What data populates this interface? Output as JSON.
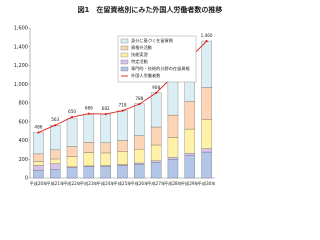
{
  "chart_data": {
    "type": "bar",
    "stacked": true,
    "title": "図1　在留資格別にみた外国人労働者数の推移",
    "categories": [
      "平成20年",
      "平成21年",
      "平成22年",
      "平成23年",
      "平成24年",
      "平成25年",
      "平成26年",
      "平成27年",
      "平成28年",
      "平成29年",
      "平成30年"
    ],
    "series": [
      {
        "name": "専門的・技術的分野の在留資格",
        "color": "#b4c6e7",
        "values": [
          84,
          93,
          111,
          121,
          124,
          133,
          147,
          168,
          201,
          238,
          277
        ]
      },
      {
        "name": "特定活動",
        "color": "#d9c3e9",
        "values": [
          50,
          60,
          8,
          8,
          9,
          10,
          13,
          15,
          19,
          26,
          36
        ]
      },
      {
        "name": "技能実習",
        "color": "#fff2a8",
        "values": [
          40,
          50,
          110,
          143,
          134,
          136,
          146,
          169,
          211,
          258,
          308
        ]
      },
      {
        "name": "資格外活動",
        "color": "#fbd5b5",
        "values": [
          83,
          97,
          108,
          110,
          108,
          122,
          146,
          192,
          240,
          297,
          344
        ]
      },
      {
        "name": "身分に基づく在留資格",
        "color": "#dbeef3",
        "values": [
          229,
          263,
          296,
          300,
          308,
          316,
          339,
          367,
          413,
          459,
          496
        ]
      }
    ],
    "line": {
      "name": "外国人労働者数",
      "color": "#e02020",
      "values": [
        486,
        563,
        650,
        686,
        682,
        718,
        788,
        908,
        1084,
        1279,
        1460
      ],
      "value_labels": [
        "486",
        "563",
        "650",
        "686",
        "682",
        "718",
        "788",
        "908",
        "1,084",
        "1,279",
        "1,460"
      ]
    },
    "ylim": [
      0,
      1600
    ],
    "yticks": [
      0,
      200,
      400,
      600,
      800,
      {
        "value": 1000,
        "label": "1,000"
      },
      {
        "value": 1200,
        "label": "1,200"
      },
      {
        "value": 1400,
        "label": "1,400"
      },
      {
        "value": 1600,
        "label": "1,600"
      }
    ],
    "grid": false,
    "legend": "upper center"
  }
}
